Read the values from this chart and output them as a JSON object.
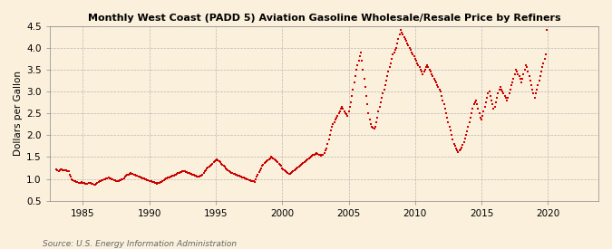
{
  "title": "Monthly West Coast (PADD 5) Aviation Gasoline Wholesale/Resale Price by Refiners",
  "ylabel": "Dollars per Gallon",
  "source": "Source: U.S. Energy Information Administration",
  "background_color": "#faf0dc",
  "marker_color": "#cc0000",
  "ylim": [
    0.5,
    4.5
  ],
  "yticks": [
    0.5,
    1.0,
    1.5,
    2.0,
    2.5,
    3.0,
    3.5,
    4.0,
    4.5
  ],
  "xticks": [
    1985,
    1990,
    1995,
    2000,
    2005,
    2010,
    2015,
    2020
  ],
  "xmin": 1982.5,
  "xmax": 2023.8,
  "start_year": 1983,
  "start_month": 1,
  "prices": [
    1.21,
    1.19,
    1.18,
    1.2,
    1.22,
    1.21,
    1.2,
    1.19,
    1.2,
    1.19,
    1.18,
    1.17,
    1.1,
    1.05,
    1.0,
    0.98,
    0.96,
    0.94,
    0.93,
    0.92,
    0.91,
    0.9,
    0.91,
    0.92,
    0.91,
    0.9,
    0.89,
    0.88,
    0.89,
    0.9,
    0.91,
    0.9,
    0.89,
    0.88,
    0.87,
    0.86,
    0.88,
    0.9,
    0.92,
    0.94,
    0.95,
    0.97,
    0.98,
    0.99,
    1.0,
    1.01,
    1.02,
    1.03,
    1.02,
    1.01,
    1.0,
    0.99,
    0.98,
    0.97,
    0.96,
    0.95,
    0.96,
    0.97,
    0.98,
    0.99,
    1.0,
    1.02,
    1.05,
    1.07,
    1.09,
    1.1,
    1.12,
    1.13,
    1.12,
    1.11,
    1.1,
    1.09,
    1.08,
    1.07,
    1.06,
    1.05,
    1.04,
    1.03,
    1.02,
    1.01,
    1.0,
    0.99,
    0.98,
    0.97,
    0.96,
    0.95,
    0.94,
    0.93,
    0.92,
    0.91,
    0.9,
    0.89,
    0.9,
    0.91,
    0.92,
    0.93,
    0.95,
    0.97,
    0.99,
    1.01,
    1.02,
    1.03,
    1.04,
    1.05,
    1.06,
    1.07,
    1.08,
    1.09,
    1.1,
    1.12,
    1.13,
    1.14,
    1.15,
    1.16,
    1.17,
    1.18,
    1.17,
    1.16,
    1.15,
    1.14,
    1.13,
    1.12,
    1.11,
    1.1,
    1.09,
    1.08,
    1.07,
    1.06,
    1.05,
    1.06,
    1.07,
    1.08,
    1.1,
    1.13,
    1.17,
    1.2,
    1.23,
    1.26,
    1.29,
    1.31,
    1.33,
    1.35,
    1.38,
    1.4,
    1.42,
    1.44,
    1.42,
    1.4,
    1.38,
    1.35,
    1.32,
    1.3,
    1.28,
    1.25,
    1.22,
    1.2,
    1.18,
    1.16,
    1.14,
    1.13,
    1.12,
    1.11,
    1.1,
    1.09,
    1.08,
    1.07,
    1.06,
    1.05,
    1.04,
    1.03,
    1.02,
    1.01,
    1.0,
    0.99,
    0.98,
    0.97,
    0.96,
    0.95,
    0.94,
    0.93,
    1.0,
    1.05,
    1.1,
    1.15,
    1.2,
    1.25,
    1.3,
    1.33,
    1.36,
    1.38,
    1.4,
    1.42,
    1.45,
    1.47,
    1.5,
    1.48,
    1.46,
    1.44,
    1.42,
    1.4,
    1.38,
    1.35,
    1.32,
    1.3,
    1.25,
    1.22,
    1.2,
    1.18,
    1.16,
    1.14,
    1.12,
    1.11,
    1.13,
    1.15,
    1.18,
    1.2,
    1.22,
    1.24,
    1.26,
    1.28,
    1.3,
    1.32,
    1.34,
    1.36,
    1.38,
    1.4,
    1.42,
    1.44,
    1.46,
    1.48,
    1.5,
    1.52,
    1.54,
    1.56,
    1.58,
    1.6,
    1.58,
    1.56,
    1.54,
    1.52,
    1.54,
    1.56,
    1.6,
    1.65,
    1.7,
    1.8,
    1.9,
    2.0,
    2.1,
    2.2,
    2.25,
    2.3,
    2.35,
    2.4,
    2.45,
    2.5,
    2.55,
    2.6,
    2.65,
    2.6,
    2.55,
    2.5,
    2.48,
    2.45,
    2.55,
    2.65,
    2.75,
    2.9,
    3.05,
    3.2,
    3.35,
    3.5,
    3.6,
    3.7,
    3.8,
    3.9,
    3.7,
    3.5,
    3.3,
    3.1,
    2.9,
    2.7,
    2.5,
    2.35,
    2.25,
    2.2,
    2.18,
    2.15,
    2.2,
    2.3,
    2.4,
    2.55,
    2.65,
    2.75,
    2.85,
    2.95,
    3.05,
    3.15,
    3.25,
    3.35,
    3.45,
    3.55,
    3.65,
    3.75,
    3.85,
    3.9,
    3.95,
    4.0,
    4.1,
    4.2,
    4.3,
    4.4,
    4.35,
    4.3,
    4.25,
    4.2,
    4.15,
    4.1,
    4.05,
    4.0,
    3.95,
    3.9,
    3.85,
    3.8,
    3.75,
    3.7,
    3.65,
    3.6,
    3.55,
    3.5,
    3.45,
    3.4,
    3.45,
    3.5,
    3.55,
    3.6,
    3.55,
    3.5,
    3.45,
    3.4,
    3.35,
    3.3,
    3.25,
    3.2,
    3.15,
    3.1,
    3.05,
    3.0,
    2.9,
    2.8,
    2.7,
    2.6,
    2.5,
    2.4,
    2.3,
    2.2,
    2.1,
    2.0,
    1.9,
    1.8,
    1.75,
    1.7,
    1.65,
    1.62,
    1.65,
    1.68,
    1.72,
    1.78,
    1.85,
    1.92,
    2.0,
    2.08,
    2.2,
    2.3,
    2.4,
    2.5,
    2.6,
    2.7,
    2.75,
    2.8,
    2.7,
    2.6,
    2.5,
    2.4,
    2.35,
    2.45,
    2.55,
    2.65,
    2.75,
    2.85,
    2.95,
    3.0,
    2.9,
    2.8,
    2.7,
    2.6,
    2.65,
    2.75,
    2.85,
    2.95,
    3.05,
    3.1,
    3.05,
    3.0,
    2.95,
    2.9,
    2.85,
    2.8,
    2.85,
    2.95,
    3.05,
    3.15,
    3.2,
    3.3,
    3.4,
    3.5,
    3.45,
    3.4,
    3.35,
    3.3,
    3.2,
    3.3,
    3.4,
    3.5,
    3.6,
    3.55,
    3.45,
    3.35,
    3.25,
    3.15,
    3.05,
    2.95,
    2.85,
    2.95,
    3.05,
    3.15,
    3.25,
    3.35,
    3.45,
    3.55,
    3.65,
    3.75,
    3.85,
    4.4
  ]
}
